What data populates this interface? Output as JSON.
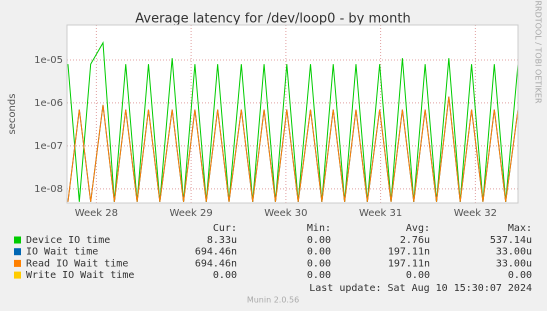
{
  "chart_data": {
    "type": "line",
    "title": "Average latency for /dev/loop0 - by month",
    "y_label": "seconds",
    "side_note": "RRDTOOL / TOBI OETIKER",
    "log_y": true,
    "grid": true,
    "xlim": [
      27.69,
      32.45
    ],
    "ylim": [
      4.7e-09,
      6.5e-05
    ],
    "xticks": [
      {
        "value": 28,
        "label": "Week 28"
      },
      {
        "value": 29,
        "label": "Week 29"
      },
      {
        "value": 30,
        "label": "Week 30"
      },
      {
        "value": 31,
        "label": "Week 31"
      },
      {
        "value": 32,
        "label": "Week 32"
      }
    ],
    "yticks": [
      {
        "value": 1e-08,
        "label": "1e-08"
      },
      {
        "value": 1e-07,
        "label": "1e-07"
      },
      {
        "value": 1e-06,
        "label": "1e-06"
      },
      {
        "value": 1e-05,
        "label": "1e-05"
      }
    ],
    "x": [
      27.7,
      27.82,
      27.94,
      28.07,
      28.19,
      28.31,
      28.43,
      28.55,
      28.67,
      28.8,
      28.92,
      29.04,
      29.16,
      29.28,
      29.4,
      29.53,
      29.65,
      29.77,
      29.89,
      30.01,
      30.13,
      30.26,
      30.38,
      30.5,
      30.62,
      30.74,
      30.86,
      30.99,
      31.11,
      31.23,
      31.35,
      31.47,
      31.59,
      31.72,
      31.84,
      31.96,
      32.08,
      32.2,
      32.32,
      32.45
    ],
    "series": [
      {
        "name": "Device IO time",
        "color": "#00cc00",
        "values": [
          8e-06,
          5e-09,
          8e-06,
          2.5e-05,
          5e-09,
          8e-06,
          5e-09,
          8e-06,
          5e-09,
          1.1e-05,
          5e-09,
          8e-06,
          5e-09,
          8e-06,
          5e-09,
          8e-06,
          5e-09,
          8e-06,
          5e-09,
          8e-06,
          5e-09,
          8e-06,
          5e-09,
          8e-06,
          5e-09,
          8e-06,
          5e-09,
          8e-06,
          5e-09,
          1.1e-05,
          5e-09,
          8e-06,
          5e-09,
          1.1e-05,
          5e-09,
          8e-06,
          5e-09,
          8e-06,
          5e-09,
          8e-06
        ]
      },
      {
        "name": "IO Wait time",
        "color": "#0066b3",
        "values": [
          5e-09,
          7e-07,
          5e-09,
          9e-07,
          5e-09,
          7e-07,
          5e-09,
          7e-07,
          5e-09,
          7e-07,
          5e-09,
          7e-07,
          5e-09,
          7e-07,
          5e-09,
          7e-07,
          5e-09,
          7e-07,
          5e-09,
          7e-07,
          5e-09,
          7e-07,
          5e-09,
          7e-07,
          5e-09,
          7e-07,
          5e-09,
          7e-07,
          5e-09,
          7e-07,
          5e-09,
          7e-07,
          5e-09,
          1.4e-06,
          5e-09,
          7e-07,
          5e-09,
          7e-07,
          5e-09,
          7e-07
        ]
      },
      {
        "name": "Read IO Wait time",
        "color": "#ff8000",
        "values": [
          5e-09,
          7e-07,
          5e-09,
          9e-07,
          5e-09,
          7e-07,
          5e-09,
          7e-07,
          5e-09,
          7e-07,
          5e-09,
          7e-07,
          5e-09,
          7e-07,
          5e-09,
          7e-07,
          5e-09,
          7e-07,
          5e-09,
          7e-07,
          5e-09,
          7e-07,
          5e-09,
          7e-07,
          5e-09,
          7e-07,
          5e-09,
          7e-07,
          5e-09,
          7e-07,
          5e-09,
          7e-07,
          5e-09,
          1.4e-06,
          5e-09,
          7e-07,
          5e-09,
          7e-07,
          5e-09,
          7e-07
        ]
      },
      {
        "name": "Write IO Wait time",
        "color": "#ffcc00",
        "values": [
          null,
          null,
          null,
          null,
          null,
          null,
          null,
          null,
          null,
          null,
          null,
          null,
          null,
          null,
          null,
          null,
          null,
          null,
          null,
          null,
          null,
          null,
          null,
          null,
          null,
          null,
          null,
          null,
          null,
          null,
          null,
          null,
          null,
          null,
          null,
          null,
          null,
          null,
          null,
          null
        ]
      }
    ],
    "stats": {
      "headers": [
        "Cur:",
        "Min:",
        "Avg:",
        "Max:"
      ],
      "rows": [
        [
          "8.33u",
          "0.00",
          "2.76u",
          "537.14u"
        ],
        [
          "694.46n",
          "0.00",
          "197.11n",
          "33.00u"
        ],
        [
          "694.46n",
          "0.00",
          "197.11n",
          "33.00u"
        ],
        [
          "0.00",
          "0.00",
          "0.00",
          "0.00"
        ]
      ]
    },
    "last_update": "Last update: Sat Aug 10 15:30:07 2024",
    "footer": "Munin 2.0.56"
  }
}
